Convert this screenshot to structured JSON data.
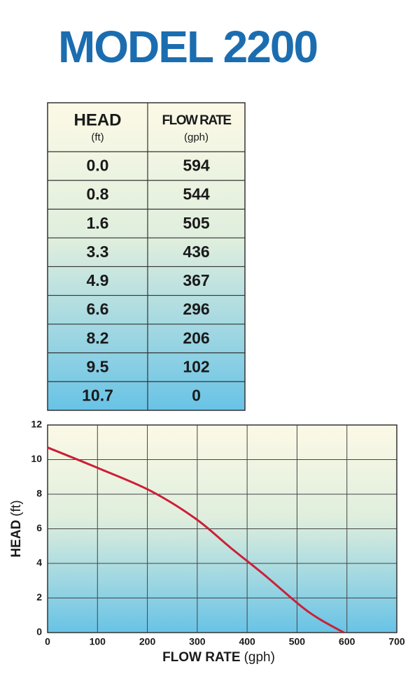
{
  "title": "MODEL 2200",
  "table": {
    "header": [
      {
        "name": "HEAD",
        "unit": "(ft)"
      },
      {
        "name": "FLOW RATE",
        "unit": "(gph)"
      }
    ],
    "rows": [
      [
        "0.0",
        "594"
      ],
      [
        "0.8",
        "544"
      ],
      [
        "1.6",
        "505"
      ],
      [
        "3.3",
        "436"
      ],
      [
        "4.9",
        "367"
      ],
      [
        "6.6",
        "296"
      ],
      [
        "8.2",
        "206"
      ],
      [
        "9.5",
        "102"
      ],
      [
        "10.7",
        "0"
      ]
    ]
  },
  "chart_data": {
    "type": "line",
    "x_label": "FLOW RATE",
    "x_unit": "(gph)",
    "y_label": "HEAD",
    "y_unit": "(ft)",
    "x": [
      594,
      544,
      505,
      436,
      367,
      296,
      206,
      102,
      0
    ],
    "values": [
      0,
      0.8,
      1.6,
      3.3,
      4.9,
      6.6,
      8.2,
      9.5,
      10.7
    ],
    "color": "#cc1f36",
    "xlim": [
      0,
      700
    ],
    "xticks": [
      0,
      100,
      200,
      300,
      400,
      500,
      600,
      700
    ],
    "ylim": [
      0,
      12
    ],
    "yticks": [
      0,
      2,
      4,
      6,
      8,
      10,
      12
    ],
    "grid": true
  }
}
